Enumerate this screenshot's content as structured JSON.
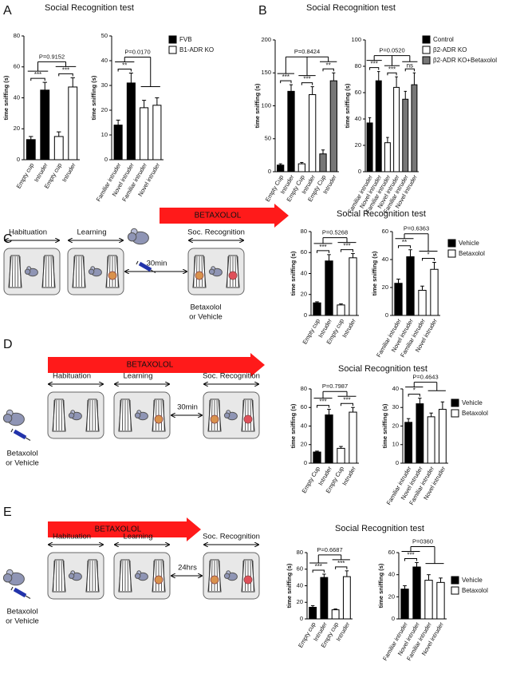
{
  "figure": {
    "panels": [
      {
        "label": "A",
        "title": "Social Recognition test"
      },
      {
        "label": "B",
        "title": "Social Recognition test"
      },
      {
        "label": "C",
        "title": "Social Recognition test"
      },
      {
        "label": "D",
        "title": "Social Recognition test"
      },
      {
        "label": "E",
        "title": "Social Recognition test"
      }
    ],
    "diagrams": [
      {
        "drug": "BETAXOLOL",
        "stages": [
          "Habituation",
          "Learning",
          "Soc. Recognition"
        ],
        "interval": "30min",
        "injection": [
          "Betaxolol",
          "or Vehicle"
        ]
      },
      {
        "drug": "BETAXOLOL",
        "stages": [
          "Habituation",
          "Learning",
          "Soc. Recognition"
        ],
        "interval": "30min",
        "injection": [
          "Betaxolol",
          "or Vehicle"
        ]
      },
      {
        "drug": "BETAXOLOL",
        "stages": [
          "Habituation",
          "Learning",
          "Soc. Recognition"
        ],
        "interval": "24hrs",
        "injection": [
          "Betaxolol",
          "or Vehicle"
        ]
      }
    ]
  },
  "chart_data": [
    {
      "type": "bar",
      "ylabel": "time sniffing (s)",
      "categories": [
        "Empty cup",
        "Intruder",
        "Empty cup",
        "Intruder"
      ],
      "values": [
        13,
        45,
        15,
        47
      ],
      "errors": [
        2,
        5,
        3,
        6
      ],
      "colors": [
        "#000000",
        "#000000",
        "#ffffff",
        "#ffffff"
      ],
      "ylim": [
        0,
        80
      ],
      "yticks": [
        0,
        20,
        40,
        60,
        80
      ],
      "significance": [
        "***",
        "***"
      ],
      "pvalue": "P=0.9152"
    },
    {
      "type": "bar",
      "ylabel": "time sniffing (s)",
      "categories": [
        "Familiar intruder",
        "Novel intruder",
        "Familiar intruder",
        "Novel intruder"
      ],
      "values": [
        14,
        31,
        21,
        22
      ],
      "errors": [
        2,
        4,
        3,
        3
      ],
      "colors": [
        "#000000",
        "#000000",
        "#ffffff",
        "#ffffff"
      ],
      "ylim": [
        0,
        50
      ],
      "yticks": [
        0,
        10,
        20,
        30,
        40,
        50
      ],
      "significance": [
        "**"
      ],
      "pvalue": "P=0.0170",
      "legend": [
        {
          "name": "FVB",
          "color": "#000000"
        },
        {
          "name": "B1-ADR KO",
          "color": "#ffffff"
        }
      ]
    },
    {
      "type": "bar",
      "ylabel": "time sniffing (s)",
      "categories": [
        "Empty Cup",
        "Intruder",
        "Empty Cup",
        "Intruder",
        "Empty Cup",
        "Intruder"
      ],
      "values": [
        10,
        122,
        12,
        117,
        27,
        138
      ],
      "errors": [
        2,
        10,
        2,
        12,
        6,
        12
      ],
      "colors": [
        "#000000",
        "#000000",
        "#ffffff",
        "#ffffff",
        "#777777",
        "#777777"
      ],
      "ylim": [
        0,
        200
      ],
      "yticks": [
        0,
        50,
        100,
        150,
        200
      ],
      "significance": [
        "***",
        "***",
        "**"
      ],
      "pvalue": "P=0.8424"
    },
    {
      "type": "bar",
      "ylabel": "time sniffing (s)",
      "categories": [
        "Familiar intruder",
        "Novel intruder",
        "Familiar intruder",
        "Novel intruder",
        "Familiar intruder",
        "Novel intruder"
      ],
      "values": [
        37,
        69,
        22,
        64,
        55,
        66
      ],
      "errors": [
        4,
        7,
        4,
        8,
        6,
        9
      ],
      "colors": [
        "#000000",
        "#000000",
        "#ffffff",
        "#ffffff",
        "#777777",
        "#777777"
      ],
      "ylim": [
        0,
        100
      ],
      "yticks": [
        0,
        20,
        40,
        60,
        80,
        100
      ],
      "significance": [
        "***",
        "***",
        "ns"
      ],
      "pvalue": "P=0.0520",
      "legend": [
        {
          "name": "Control",
          "color": "#000000"
        },
        {
          "name": "β2-ADR KO",
          "color": "#ffffff"
        },
        {
          "name": "β2-ADR KO+Betaxolol",
          "color": "#777777"
        }
      ]
    },
    {
      "type": "bar",
      "ylabel": "time sniffing (s)",
      "categories": [
        "Empty cup",
        "Intruder",
        "Empty cup",
        "Intruder"
      ],
      "values": [
        12,
        52,
        10,
        55
      ],
      "errors": [
        1,
        6,
        1,
        4
      ],
      "colors": [
        "#000000",
        "#000000",
        "#ffffff",
        "#ffffff"
      ],
      "ylim": [
        0,
        80
      ],
      "yticks": [
        0,
        20,
        40,
        60,
        80
      ],
      "significance": [
        "***",
        "***"
      ],
      "pvalue": "P=0.5268"
    },
    {
      "type": "bar",
      "ylabel": "time sniffing (s)",
      "categories": [
        "Familiar intruder",
        "Novel intruder",
        "Familiar intruder",
        "Novel intruder"
      ],
      "values": [
        23,
        42,
        18,
        33
      ],
      "errors": [
        3,
        5,
        3,
        5
      ],
      "colors": [
        "#000000",
        "#000000",
        "#ffffff",
        "#ffffff"
      ],
      "ylim": [
        0,
        60
      ],
      "yticks": [
        0,
        20,
        40,
        60
      ],
      "significance": [
        "**",
        "*"
      ],
      "pvalue": "P=0.6363",
      "legend": [
        {
          "name": "Vehicle",
          "color": "#000000"
        },
        {
          "name": "Betaxolol",
          "color": "#ffffff"
        }
      ]
    },
    {
      "type": "bar",
      "ylabel": "time sniffing (s)",
      "categories": [
        "Empty Cup",
        "Intruder",
        "Empty Cup",
        "Intruder"
      ],
      "values": [
        12,
        52,
        16,
        55
      ],
      "errors": [
        1,
        6,
        2,
        5
      ],
      "colors": [
        "#000000",
        "#000000",
        "#ffffff",
        "#ffffff"
      ],
      "ylim": [
        0,
        80
      ],
      "yticks": [
        0,
        20,
        40,
        60,
        80
      ],
      "significance": [
        "***",
        "***"
      ],
      "pvalue": "P=0.7987"
    },
    {
      "type": "bar",
      "ylabel": "time sniffing (s)",
      "categories": [
        "Familiar intruder",
        "Novel intruder",
        "Familiar intruder",
        "Novel intruder"
      ],
      "values": [
        22,
        32,
        25,
        29
      ],
      "errors": [
        2,
        3,
        2,
        4
      ],
      "colors": [
        "#000000",
        "#000000",
        "#ffffff",
        "#ffffff"
      ],
      "ylim": [
        0,
        40
      ],
      "yticks": [
        0,
        10,
        20,
        30,
        40
      ],
      "significance": [
        "*"
      ],
      "pvalue": "P=0.4643",
      "legend": [
        {
          "name": "Vehicle",
          "color": "#000000"
        },
        {
          "name": "Betaxolol",
          "color": "#ffffff"
        }
      ]
    },
    {
      "type": "bar",
      "ylabel": "time sniffing (s)",
      "categories": [
        "Empty cup",
        "Intruder",
        "Empty cup",
        "Intruder"
      ],
      "values": [
        14,
        50,
        11,
        51
      ],
      "errors": [
        2,
        4,
        1,
        7
      ],
      "colors": [
        "#000000",
        "#000000",
        "#ffffff",
        "#ffffff"
      ],
      "ylim": [
        0,
        80
      ],
      "yticks": [
        0,
        20,
        40,
        60,
        80
      ],
      "significance": [
        "***",
        "***"
      ],
      "pvalue": "P=0.6687"
    },
    {
      "type": "bar",
      "ylabel": "time sniffing (s)",
      "categories": [
        "Familiar intruder",
        "Novel intruder",
        "Familiar intruder",
        "Novel intruder"
      ],
      "values": [
        27,
        47,
        35,
        33
      ],
      "errors": [
        3,
        4,
        5,
        4
      ],
      "colors": [
        "#000000",
        "#000000",
        "#ffffff",
        "#ffffff"
      ],
      "ylim": [
        0,
        60
      ],
      "yticks": [
        0,
        20,
        40,
        60
      ],
      "significance": [
        "***"
      ],
      "pvalue": "P=0360",
      "legend": [
        {
          "name": "Vehicle",
          "color": "#000000"
        },
        {
          "name": "Betaxolol",
          "color": "#ffffff"
        }
      ]
    }
  ]
}
